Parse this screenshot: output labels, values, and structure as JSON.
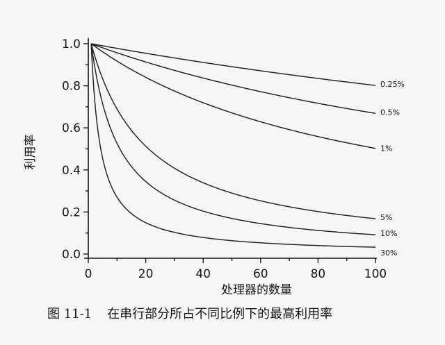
{
  "chart_data": {
    "type": "line",
    "title": "",
    "xlabel": "处理器的数量",
    "ylabel": "利用率",
    "xlim": [
      0,
      100
    ],
    "ylim": [
      0,
      1.0
    ],
    "x_ticks": [
      0,
      20,
      40,
      60,
      80,
      100
    ],
    "y_ticks": [
      0.0,
      0.2,
      0.4,
      0.6,
      0.8,
      1.0
    ],
    "x_tick_labels": [
      "0",
      "20",
      "40",
      "60",
      "80",
      "100"
    ],
    "y_tick_labels": [
      "0.0",
      "0.2",
      "0.4",
      "0.6",
      "0.8",
      "1.0"
    ],
    "grid": false,
    "legend": "none",
    "series": [
      {
        "name": "0.25%",
        "serial_fraction": 0.0025
      },
      {
        "name": "0.5%",
        "serial_fraction": 0.005
      },
      {
        "name": "1%",
        "serial_fraction": 0.01
      },
      {
        "name": "5%",
        "serial_fraction": 0.05
      },
      {
        "name": "10%",
        "serial_fraction": 0.1
      },
      {
        "name": "30%",
        "serial_fraction": 0.3
      }
    ],
    "line_color": "#262626"
  },
  "caption": {
    "figure_number": "图 11-1",
    "text": "在串行部分所占不同比例下的最高利用率"
  }
}
